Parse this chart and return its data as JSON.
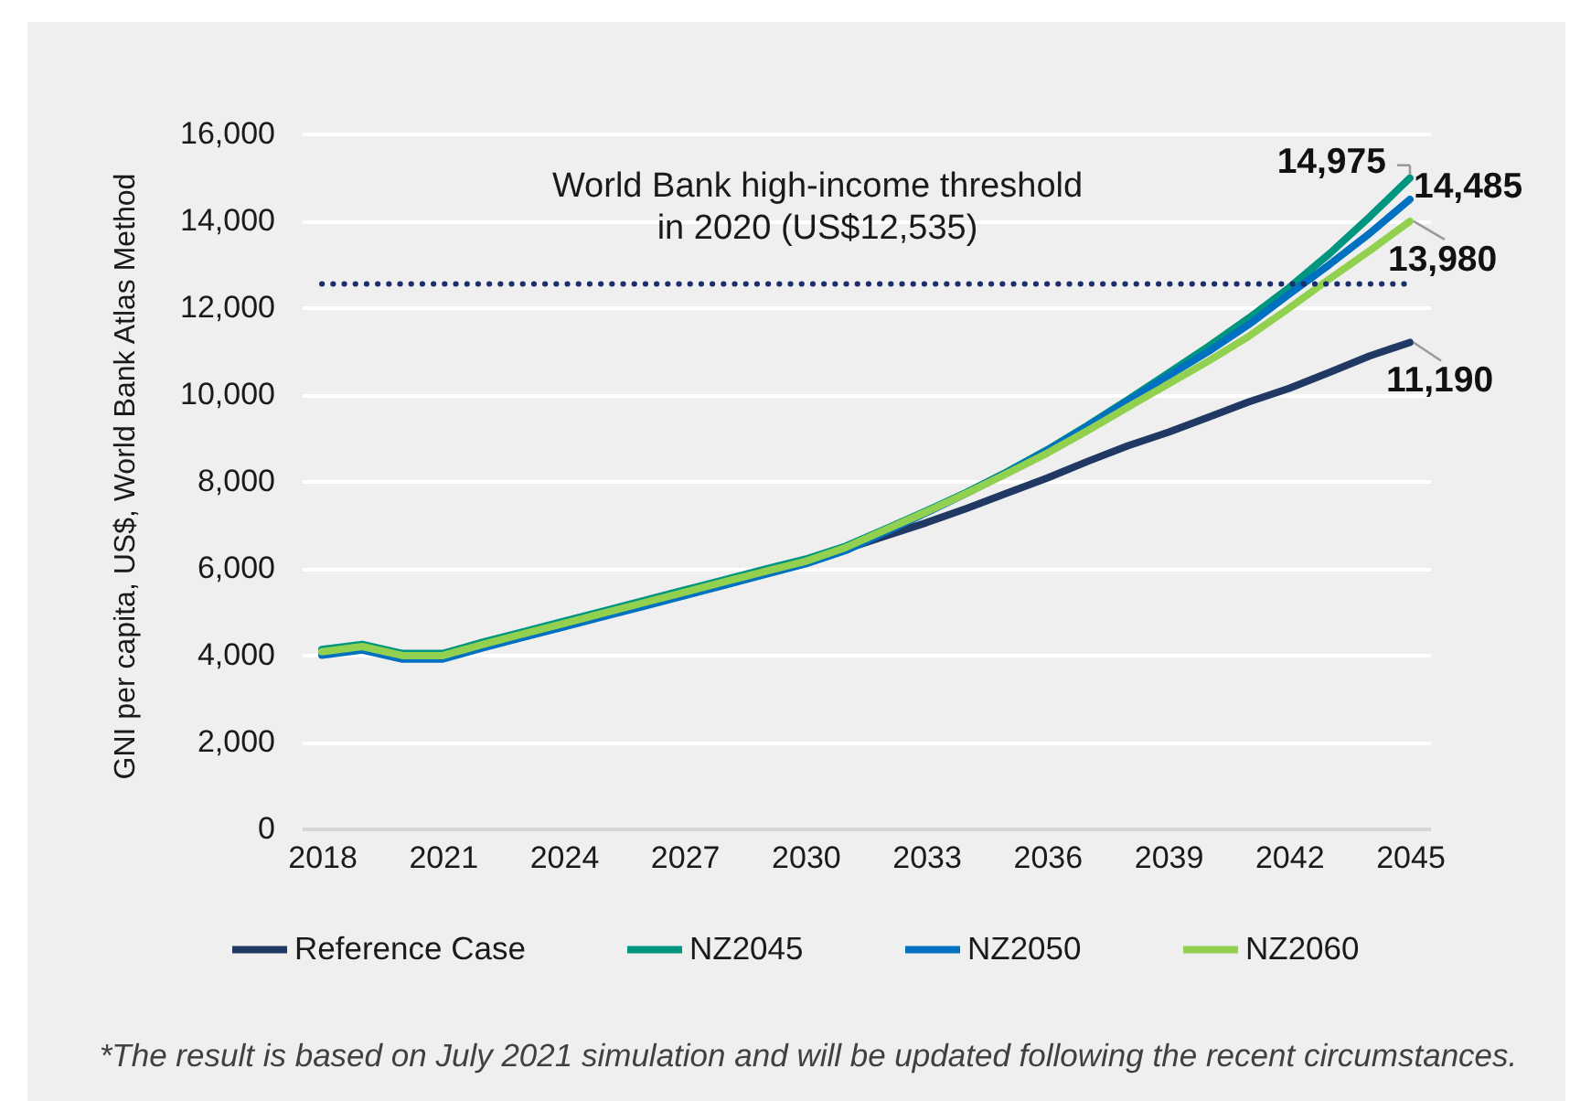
{
  "chart_data": {
    "type": "line",
    "ylabel": "GNI per capita, US$, World Bank Atlas Method",
    "x": [
      2018,
      2019,
      2020,
      2021,
      2022,
      2023,
      2024,
      2025,
      2026,
      2027,
      2028,
      2029,
      2030,
      2031,
      2032,
      2033,
      2034,
      2035,
      2036,
      2037,
      2038,
      2039,
      2040,
      2041,
      2042,
      2043,
      2044,
      2045
    ],
    "xlim": [
      2017.5,
      2045.5
    ],
    "xticks": [
      2018,
      2021,
      2024,
      2027,
      2030,
      2033,
      2036,
      2039,
      2042,
      2045
    ],
    "ylim": [
      0,
      16000
    ],
    "yticks": [
      0,
      {
        "value": 2000,
        "label": "2,000"
      },
      {
        "value": 4000,
        "label": "4,000"
      },
      {
        "value": 6000,
        "label": "6,000"
      },
      {
        "value": 8000,
        "label": "8,000"
      },
      {
        "value": 10000,
        "label": "10,000"
      },
      {
        "value": 12000,
        "label": "12,000"
      },
      {
        "value": 14000,
        "label": "14,000"
      },
      {
        "value": 16000,
        "label": "16,000"
      }
    ],
    "grid": "y",
    "legend": "bottom",
    "series": [
      {
        "name": "Reference Case",
        "color": "#203864",
        "values": [
          null,
          null,
          null,
          null,
          null,
          null,
          null,
          null,
          null,
          null,
          null,
          null,
          6150,
          6430,
          6740,
          7040,
          7370,
          7720,
          8070,
          8450,
          8810,
          9120,
          9470,
          9820,
          10130,
          10500,
          10880,
          11190
        ],
        "value_labels": [
          null,
          null,
          null,
          null,
          null,
          null,
          null,
          null,
          null,
          null,
          null,
          null,
          null,
          null,
          null,
          null,
          null,
          null,
          null,
          null,
          null,
          null,
          null,
          null,
          null,
          null,
          null,
          "11,190"
        ]
      },
      {
        "name": "NZ2045",
        "color": "#00957e",
        "values": [
          4120,
          4240,
          4030,
          4030,
          4290,
          4530,
          4770,
          5010,
          5250,
          5490,
          5730,
          5970,
          6200,
          6500,
          6900,
          7310,
          7740,
          8210,
          8720,
          9280,
          9870,
          10480,
          11100,
          11750,
          12450,
          13230,
          14080,
          14975
        ],
        "value_labels": [
          null,
          null,
          null,
          null,
          null,
          null,
          null,
          null,
          null,
          null,
          null,
          null,
          null,
          null,
          null,
          null,
          null,
          null,
          null,
          null,
          null,
          null,
          null,
          null,
          null,
          null,
          null,
          "14,975"
        ]
      },
      {
        "name": "NZ2050",
        "color": "#0070c0",
        "values": [
          3990,
          4110,
          3900,
          3900,
          4160,
          4400,
          4640,
          4880,
          5120,
          5360,
          5600,
          5850,
          6090,
          6400,
          6830,
          7270,
          7720,
          8190,
          8700,
          9260,
          9840,
          10420,
          10980,
          11600,
          12300,
          12980,
          13700,
          14485
        ],
        "value_labels": [
          null,
          null,
          null,
          null,
          null,
          null,
          null,
          null,
          null,
          null,
          null,
          null,
          null,
          null,
          null,
          null,
          null,
          null,
          null,
          null,
          null,
          null,
          null,
          null,
          null,
          null,
          null,
          "14,485"
        ]
      },
      {
        "name": "NZ2060",
        "color": "#92d050",
        "values": [
          4070,
          4190,
          3980,
          3980,
          4240,
          4480,
          4720,
          4960,
          5200,
          5440,
          5680,
          5920,
          6150,
          6470,
          6880,
          7290,
          7720,
          8170,
          8640,
          9160,
          9700,
          10230,
          10760,
          11330,
          11980,
          12650,
          13300,
          13980
        ],
        "value_labels": [
          null,
          null,
          null,
          null,
          null,
          null,
          null,
          null,
          null,
          null,
          null,
          null,
          null,
          null,
          null,
          null,
          null,
          null,
          null,
          null,
          null,
          null,
          null,
          null,
          null,
          null,
          null,
          "13,980"
        ]
      }
    ],
    "ref_lines": [
      {
        "axis": "y",
        "value": 12535,
        "label": "World Bank high-income threshold\nin 2020 (US$12,535)",
        "color": "#1b2e6e",
        "line_style": "dotted"
      }
    ],
    "annotations": [
      "*The result is based on July 2021 simulation and will be updated following the recent circumstances."
    ]
  }
}
